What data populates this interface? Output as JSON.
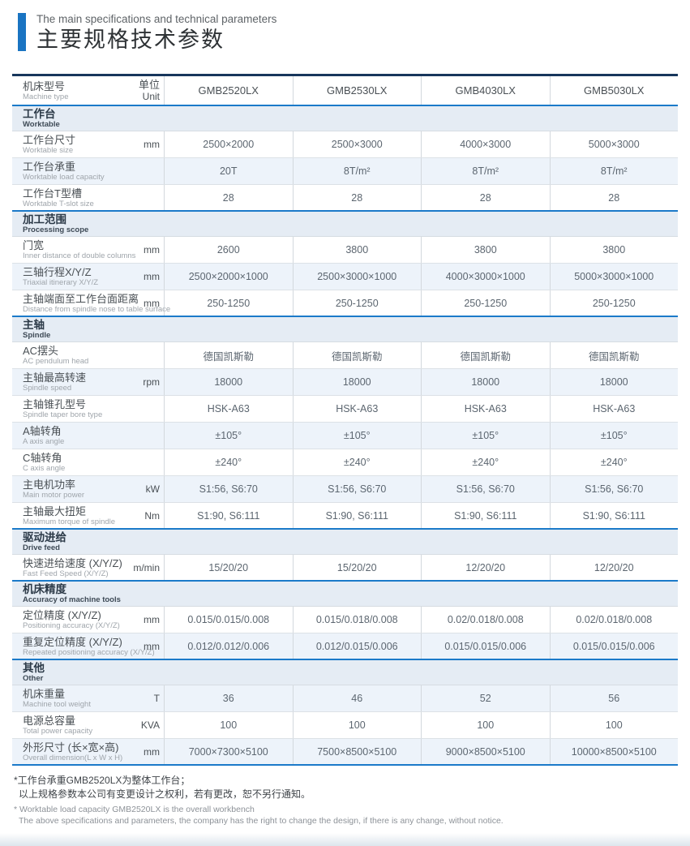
{
  "page": {
    "title_en": "The main specifications and technical parameters",
    "title_zh": "主要规格技术参数",
    "accent_color": "#1a74c2",
    "line_blue": "#1b7ac9",
    "line_navy": "#17365c",
    "band_bg": "#e5ecf4",
    "stripe_bg": "#edf3fa"
  },
  "table": {
    "header": {
      "label_zh": "机床型号",
      "label_en": "Machine type",
      "unit_zh": "单位",
      "unit_en": "Unit",
      "models": [
        "GMB2520LX",
        "GMB2530LX",
        "GMB4030LX",
        "GMB5030LX"
      ]
    },
    "sections": [
      {
        "title_zh": "工作台",
        "title_en": "Worktable",
        "rows": [
          {
            "zh": "工作台尺寸",
            "en": "Worktable size",
            "unit": "mm",
            "shaded": false,
            "values": [
              "2500×2000",
              "2500×3000",
              "4000×3000",
              "5000×3000"
            ]
          },
          {
            "zh": "工作台承重",
            "en": "Worktable load capacity",
            "unit": "",
            "shaded": true,
            "values": [
              "20T",
              "8T/m²",
              "8T/m²",
              "8T/m²"
            ]
          },
          {
            "zh": "工作台T型槽",
            "en": "Worktable T-slot size",
            "unit": "",
            "shaded": false,
            "values": [
              "28",
              "28",
              "28",
              "28"
            ]
          }
        ]
      },
      {
        "title_zh": "加工范围",
        "title_en": "Processing scope",
        "rows": [
          {
            "zh": "门宽",
            "en": "Inner distance of double columns",
            "unit": "mm",
            "shaded": false,
            "values": [
              "2600",
              "3800",
              "3800",
              "3800"
            ]
          },
          {
            "zh": "三轴行程X/Y/Z",
            "en": "Triaxial itinerary X/Y/Z",
            "unit": "mm",
            "shaded": true,
            "values": [
              "2500×2000×1000",
              "2500×3000×1000",
              "4000×3000×1000",
              "5000×3000×1000"
            ]
          },
          {
            "zh": "主轴端面至工作台面距离",
            "en": "Distance from spindle nose to table surface",
            "unit": "mm",
            "shaded": false,
            "values": [
              "250-1250",
              "250-1250",
              "250-1250",
              "250-1250"
            ]
          }
        ]
      },
      {
        "title_zh": "主轴",
        "title_en": "Spindle",
        "rows": [
          {
            "zh": "AC摆头",
            "en": "AC pendulum head",
            "unit": "",
            "shaded": false,
            "values": [
              "德国凯斯勒",
              "德国凯斯勒",
              "德国凯斯勒",
              "德国凯斯勒"
            ]
          },
          {
            "zh": "主轴最高转速",
            "en": "Spindle speed",
            "unit": "rpm",
            "shaded": true,
            "values": [
              "18000",
              "18000",
              "18000",
              "18000"
            ]
          },
          {
            "zh": "主轴锥孔型号",
            "en": "Spindle taper bore type",
            "unit": "",
            "shaded": false,
            "values": [
              "HSK-A63",
              "HSK-A63",
              "HSK-A63",
              "HSK-A63"
            ]
          },
          {
            "zh": "A轴转角",
            "en": "A axis angle",
            "unit": "",
            "shaded": true,
            "values": [
              "±105°",
              "±105°",
              "±105°",
              "±105°"
            ]
          },
          {
            "zh": "C轴转角",
            "en": "C axis angle",
            "unit": "",
            "shaded": false,
            "values": [
              "±240°",
              "±240°",
              "±240°",
              "±240°"
            ]
          },
          {
            "zh": "主电机功率",
            "en": "Main motor power",
            "unit": "kW",
            "shaded": true,
            "values": [
              "S1:56, S6:70",
              "S1:56, S6:70",
              "S1:56, S6:70",
              "S1:56, S6:70"
            ]
          },
          {
            "zh": "主轴最大扭矩",
            "en": "Maximum torque of spindle",
            "unit": "Nm",
            "shaded": false,
            "values": [
              "S1:90, S6:111",
              "S1:90, S6:111",
              "S1:90, S6:111",
              "S1:90, S6:111"
            ]
          }
        ]
      },
      {
        "title_zh": "驱动进给",
        "title_en": "Drive feed",
        "rows": [
          {
            "zh": "快速进给速度 (X/Y/Z)",
            "en": "Fast Feed Speed (X/Y/Z)",
            "unit": "m/min",
            "shaded": false,
            "values": [
              "15/20/20",
              "15/20/20",
              "12/20/20",
              "12/20/20"
            ]
          }
        ]
      },
      {
        "title_zh": "机床精度",
        "title_en": "Accuracy of machine tools",
        "rows": [
          {
            "zh": "定位精度 (X/Y/Z)",
            "en": "Positioning accuracy (X/Y/Z)",
            "unit": "mm",
            "shaded": false,
            "values": [
              "0.015/0.015/0.008",
              "0.015/0.018/0.008",
              "0.02/0.018/0.008",
              "0.02/0.018/0.008"
            ]
          },
          {
            "zh": "重复定位精度 (X/Y/Z)",
            "en": "Repeated positioning accuracy (X/Y/Z)",
            "unit": "mm",
            "shaded": true,
            "values": [
              "0.012/0.012/0.006",
              "0.012/0.015/0.006",
              "0.015/0.015/0.006",
              "0.015/0.015/0.006"
            ]
          }
        ]
      },
      {
        "title_zh": "其他",
        "title_en": "Other",
        "rows": [
          {
            "zh": "机床重量",
            "en": "Machine tool weight",
            "unit": "T",
            "shaded": true,
            "values": [
              "36",
              "46",
              "52",
              "56"
            ]
          },
          {
            "zh": "电源总容量",
            "en": "Total power capacity",
            "unit": "KVA",
            "shaded": false,
            "values": [
              "100",
              "100",
              "100",
              "100"
            ]
          },
          {
            "zh": "外形尺寸 (长×宽×高)",
            "en": "Overall dimension(L x W x H)",
            "unit": "mm",
            "shaded": true,
            "values": [
              "7000×7300×5100",
              "7500×8500×5100",
              "9000×8500×5100",
              "10000×8500×5100"
            ]
          }
        ]
      }
    ]
  },
  "notes": {
    "zh1": "*工作台承重GMB2520LX为整体工作台；",
    "zh2": "以上规格参数本公司有变更设计之权利，若有更改，恕不另行通知。",
    "en1": "* Worktable load capacity GMB2520LX is the overall workbench",
    "en2": "The above specifications and parameters, the company has the right to change the design, if there is any change, without notice."
  }
}
